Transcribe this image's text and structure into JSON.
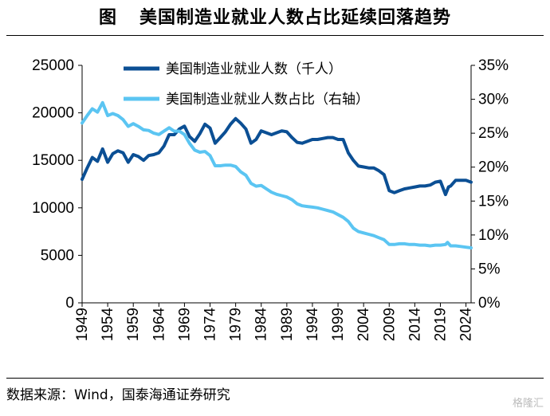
{
  "figure_label": "图",
  "title": "美国制造业就业人数占比延续回落趋势",
  "source": "数据来源：Wind，国泰海通证券研究",
  "watermark": "格隆汇",
  "chart_data": {
    "type": "line",
    "x_ticks": [
      "1949",
      "1954",
      "1959",
      "1964",
      "1969",
      "1974",
      "1979",
      "1984",
      "1989",
      "1994",
      "1999",
      "2004",
      "2009",
      "2014",
      "2019",
      "2024"
    ],
    "xlim": [
      1949,
      2025
    ],
    "y_left": {
      "ticks": [
        "0",
        "5000",
        "10000",
        "15000",
        "20000",
        "25000"
      ],
      "lim": [
        0,
        25000
      ]
    },
    "y_right": {
      "ticks": [
        "0%",
        "5%",
        "10%",
        "15%",
        "20%",
        "25%",
        "30%",
        "35%"
      ],
      "lim": [
        0,
        35
      ]
    },
    "legend_position": "top-center",
    "series": [
      {
        "name": "美国制造业就业人数（千人）",
        "axis": "left",
        "color": "#0b4f94",
        "points": [
          [
            1949,
            13000
          ],
          [
            1950,
            14200
          ],
          [
            1951,
            15300
          ],
          [
            1952,
            14900
          ],
          [
            1953,
            16200
          ],
          [
            1954,
            14800
          ],
          [
            1955,
            15700
          ],
          [
            1956,
            16000
          ],
          [
            1957,
            15800
          ],
          [
            1958,
            14800
          ],
          [
            1959,
            15600
          ],
          [
            1960,
            15400
          ],
          [
            1961,
            15000
          ],
          [
            1962,
            15500
          ],
          [
            1963,
            15600
          ],
          [
            1964,
            15800
          ],
          [
            1965,
            16500
          ],
          [
            1966,
            17700
          ],
          [
            1967,
            17700
          ],
          [
            1968,
            18300
          ],
          [
            1969,
            18600
          ],
          [
            1970,
            17500
          ],
          [
            1971,
            17000
          ],
          [
            1972,
            17800
          ],
          [
            1973,
            18800
          ],
          [
            1974,
            18400
          ],
          [
            1975,
            16800
          ],
          [
            1976,
            17400
          ],
          [
            1977,
            18000
          ],
          [
            1978,
            18800
          ],
          [
            1979,
            19400
          ],
          [
            1980,
            18900
          ],
          [
            1981,
            18300
          ],
          [
            1982,
            16800
          ],
          [
            1983,
            17200
          ],
          [
            1984,
            18100
          ],
          [
            1985,
            17900
          ],
          [
            1986,
            17700
          ],
          [
            1987,
            17900
          ],
          [
            1988,
            18100
          ],
          [
            1989,
            18000
          ],
          [
            1990,
            17400
          ],
          [
            1991,
            16900
          ],
          [
            1992,
            16800
          ],
          [
            1993,
            17000
          ],
          [
            1994,
            17200
          ],
          [
            1995,
            17200
          ],
          [
            1996,
            17300
          ],
          [
            1997,
            17400
          ],
          [
            1998,
            17400
          ],
          [
            1999,
            17200
          ],
          [
            2000,
            17200
          ],
          [
            2001,
            15800
          ],
          [
            2002,
            15000
          ],
          [
            2003,
            14400
          ],
          [
            2004,
            14300
          ],
          [
            2005,
            14200
          ],
          [
            2006,
            14200
          ],
          [
            2007,
            13900
          ],
          [
            2008,
            13500
          ],
          [
            2009,
            11800
          ],
          [
            2010,
            11600
          ],
          [
            2011,
            11800
          ],
          [
            2012,
            12000
          ],
          [
            2013,
            12100
          ],
          [
            2014,
            12200
          ],
          [
            2015,
            12300
          ],
          [
            2016,
            12300
          ],
          [
            2017,
            12400
          ],
          [
            2018,
            12700
          ],
          [
            2019,
            12800
          ],
          [
            2020,
            11400
          ],
          [
            2020.6,
            12200
          ],
          [
            2021,
            12300
          ],
          [
            2022,
            12900
          ],
          [
            2023,
            12900
          ],
          [
            2024,
            12900
          ],
          [
            2025,
            12700
          ]
        ]
      },
      {
        "name": "美国制造业就业人数占比（右轴）",
        "axis": "right",
        "color": "#5bc5f2",
        "points": [
          [
            1949,
            26.5
          ],
          [
            1950,
            27.6
          ],
          [
            1951,
            28.6
          ],
          [
            1952,
            28.1
          ],
          [
            1953,
            29.5
          ],
          [
            1954,
            27.6
          ],
          [
            1955,
            27.9
          ],
          [
            1956,
            27.6
          ],
          [
            1957,
            27.0
          ],
          [
            1958,
            26.0
          ],
          [
            1959,
            26.4
          ],
          [
            1960,
            26.0
          ],
          [
            1961,
            25.5
          ],
          [
            1962,
            25.4
          ],
          [
            1963,
            25.0
          ],
          [
            1964,
            24.8
          ],
          [
            1965,
            25.3
          ],
          [
            1966,
            25.8
          ],
          [
            1967,
            25.3
          ],
          [
            1968,
            25.3
          ],
          [
            1969,
            24.8
          ],
          [
            1970,
            23.5
          ],
          [
            1971,
            22.5
          ],
          [
            1972,
            22.2
          ],
          [
            1973,
            22.3
          ],
          [
            1974,
            21.7
          ],
          [
            1975,
            20.2
          ],
          [
            1976,
            20.2
          ],
          [
            1977,
            20.3
          ],
          [
            1978,
            20.3
          ],
          [
            1979,
            20.1
          ],
          [
            1980,
            19.3
          ],
          [
            1981,
            18.8
          ],
          [
            1982,
            17.6
          ],
          [
            1983,
            17.2
          ],
          [
            1984,
            17.3
          ],
          [
            1985,
            16.8
          ],
          [
            1986,
            16.3
          ],
          [
            1987,
            16.0
          ],
          [
            1988,
            15.8
          ],
          [
            1989,
            15.6
          ],
          [
            1990,
            15.2
          ],
          [
            1991,
            14.6
          ],
          [
            1992,
            14.3
          ],
          [
            1993,
            14.2
          ],
          [
            1994,
            14.1
          ],
          [
            1995,
            14.0
          ],
          [
            1996,
            13.8
          ],
          [
            1997,
            13.6
          ],
          [
            1998,
            13.4
          ],
          [
            1999,
            13.0
          ],
          [
            2000,
            12.6
          ],
          [
            2001,
            12.0
          ],
          [
            2002,
            11.0
          ],
          [
            2003,
            10.5
          ],
          [
            2004,
            10.3
          ],
          [
            2005,
            10.1
          ],
          [
            2006,
            9.9
          ],
          [
            2007,
            9.6
          ],
          [
            2008,
            9.3
          ],
          [
            2009,
            8.6
          ],
          [
            2010,
            8.6
          ],
          [
            2011,
            8.7
          ],
          [
            2012,
            8.7
          ],
          [
            2013,
            8.6
          ],
          [
            2014,
            8.6
          ],
          [
            2015,
            8.5
          ],
          [
            2016,
            8.5
          ],
          [
            2017,
            8.4
          ],
          [
            2018,
            8.5
          ],
          [
            2019,
            8.5
          ],
          [
            2020,
            8.6
          ],
          [
            2020.4,
            8.9
          ],
          [
            2021,
            8.4
          ],
          [
            2022,
            8.4
          ],
          [
            2023,
            8.3
          ],
          [
            2024,
            8.2
          ],
          [
            2025,
            8.1
          ]
        ]
      }
    ]
  }
}
